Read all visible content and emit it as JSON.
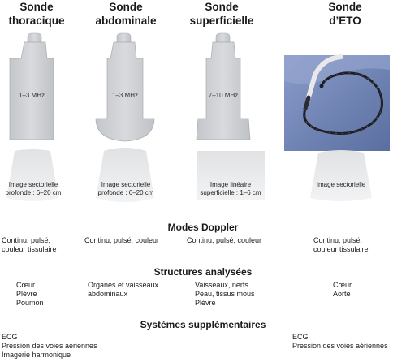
{
  "probes": [
    {
      "title_line1": "Sonde",
      "title_line2": "thoracique",
      "frequency": "1–3 MHz",
      "image_line1": "Image sectorielle",
      "image_line2": "profonde : 6–20 cm"
    },
    {
      "title_line1": "Sonde",
      "title_line2": "abdominale",
      "frequency": "1–3 MHz",
      "image_line1": "Image sectorielle",
      "image_line2": "profonde : 6–20 cm"
    },
    {
      "title_line1": "Sonde",
      "title_line2": "superficielle",
      "frequency": "7–10 MHz",
      "image_line1": "Image linéaire",
      "image_line2": "superficielle : 1–6 cm"
    },
    {
      "title_line1": "Sonde",
      "title_line2": "d’ETO",
      "frequency": "",
      "image_line1": "Image sectorielle",
      "image_line2": ""
    }
  ],
  "sections": {
    "doppler": {
      "title": "Modes Doppler",
      "cells": [
        [
          "Continu, pulsé,",
          "couleur tissulaire"
        ],
        [
          "Continu, pulsé, couleur"
        ],
        [
          "Continu, pulsé, couleur"
        ],
        [
          "Continu, pulsé,",
          "couleur tissulaire"
        ]
      ]
    },
    "structures": {
      "title": "Structures analysées",
      "cells": [
        [
          "Cœur",
          "Plèvre",
          "Poumon"
        ],
        [
          "Organes et vaisseaux",
          "abdominaux"
        ],
        [
          "Vaisseaux, nerfs",
          "Peau, tissus mous",
          "Plèvre"
        ],
        [
          "Cœur",
          "Aorte"
        ]
      ]
    },
    "systemes": {
      "title": "Systèmes supplémentaires",
      "cells": [
        [
          "ECG",
          "Pression des voies aériennes",
          "Imagerie harmonique"
        ],
        [],
        [],
        [
          "ECG",
          "Pression des voies aériennes"
        ]
      ]
    }
  },
  "colors": {
    "probe_body": "#cfd1d4",
    "probe_edge": "#a9acb0",
    "probe_shade": "#b9bcc0",
    "image_fill": "#e9eaeb",
    "photo_bg": "#6f83b3"
  }
}
